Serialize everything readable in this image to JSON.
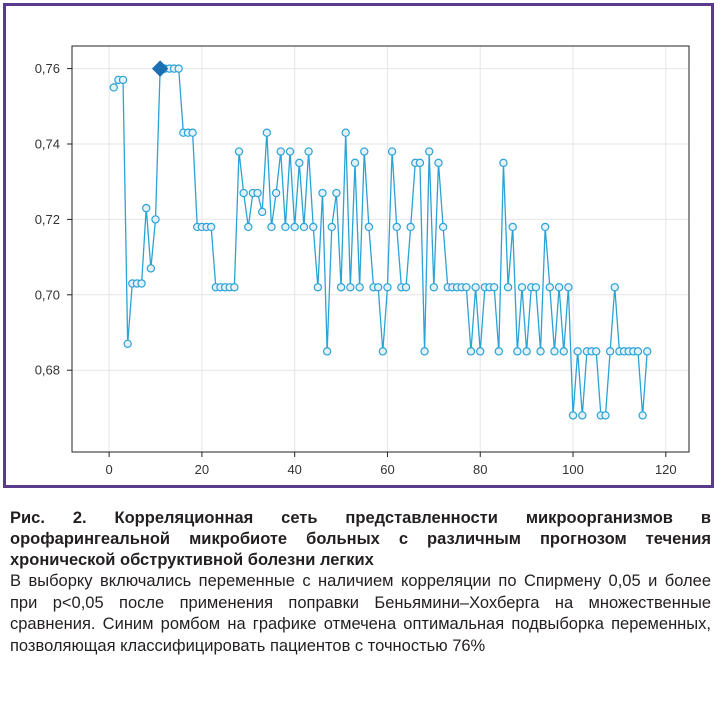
{
  "chart_data": {
    "type": "line",
    "xlim": [
      -8,
      125
    ],
    "ylim": [
      0.6583,
      0.766
    ],
    "x_ticks": [
      0,
      20,
      40,
      60,
      80,
      100,
      120
    ],
    "x_tick_labels": [
      "0",
      "20",
      "40",
      "60",
      "80",
      "100",
      "120"
    ],
    "y_ticks": [
      0.68,
      0.7,
      0.72,
      0.74,
      0.76
    ],
    "y_tick_labels": [
      "0,68",
      "0,70",
      "0,72",
      "0,74",
      "0,76"
    ],
    "grid": true,
    "colors": {
      "line": "#2ba3d6",
      "marker_fill": "#e3f1f8",
      "highlight": "#1b6fb3",
      "grid": "#e6e6e6"
    },
    "highlight": {
      "x": 11,
      "y": 0.76,
      "shape": "diamond"
    },
    "series": [
      {
        "x": [
          1,
          2,
          3,
          4,
          5,
          6,
          7,
          8,
          9,
          10,
          11,
          12,
          13,
          14,
          15,
          16,
          17,
          18,
          19,
          20,
          21,
          22,
          23,
          24,
          25,
          26,
          27,
          28,
          29,
          30,
          31,
          32,
          33,
          34,
          35,
          36,
          37,
          38,
          39,
          40,
          41,
          42,
          43,
          44,
          45,
          46,
          47,
          48,
          49,
          50,
          51,
          52,
          53,
          54,
          55,
          56,
          57,
          58,
          59,
          60,
          61,
          62,
          63,
          64,
          65,
          66,
          67,
          68,
          69,
          70,
          71,
          72,
          73,
          74,
          75,
          76,
          77,
          78,
          79,
          80,
          81,
          82,
          83,
          84,
          85,
          86,
          87,
          88,
          89,
          90,
          91,
          92,
          93,
          94,
          95,
          96,
          97,
          98,
          99,
          100,
          101,
          102,
          103,
          104,
          105,
          106,
          107,
          108,
          109,
          110,
          111,
          112,
          113,
          114,
          115,
          116
        ],
        "y": [
          0.755,
          0.757,
          0.757,
          0.687,
          0.703,
          0.703,
          0.703,
          0.723,
          0.707,
          0.72,
          0.76,
          0.76,
          0.76,
          0.76,
          0.76,
          0.743,
          0.743,
          0.743,
          0.718,
          0.718,
          0.718,
          0.718,
          0.702,
          0.702,
          0.702,
          0.702,
          0.702,
          0.738,
          0.727,
          0.718,
          0.727,
          0.727,
          0.722,
          0.743,
          0.718,
          0.727,
          0.738,
          0.718,
          0.738,
          0.718,
          0.735,
          0.718,
          0.738,
          0.718,
          0.702,
          0.727,
          0.685,
          0.718,
          0.727,
          0.702,
          0.743,
          0.702,
          0.735,
          0.702,
          0.738,
          0.718,
          0.702,
          0.702,
          0.685,
          0.702,
          0.738,
          0.718,
          0.702,
          0.702,
          0.718,
          0.735,
          0.735,
          0.685,
          0.738,
          0.702,
          0.735,
          0.718,
          0.702,
          0.702,
          0.702,
          0.702,
          0.702,
          0.685,
          0.702,
          0.685,
          0.702,
          0.702,
          0.702,
          0.685,
          0.735,
          0.702,
          0.718,
          0.685,
          0.702,
          0.685,
          0.702,
          0.702,
          0.685,
          0.718,
          0.702,
          0.685,
          0.702,
          0.685,
          0.702,
          0.668,
          0.685,
          0.668,
          0.685,
          0.685,
          0.685,
          0.668,
          0.668,
          0.685,
          0.702,
          0.685,
          0.685,
          0.685,
          0.685,
          0.685,
          0.668,
          0.685
        ]
      }
    ]
  },
  "caption": {
    "title": "Рис. 2. Корреляционная сеть представленности микроорганизмов в орофарингеальной микробиоте больных с различным прогнозом течения хронической обструктивной болезни легких",
    "text": "В выборку включались переменные с наличием корреляции по Спирмену 0,05 и более при p<0,05 после применения поправки Беньямини–Хохберга на множественные сравнения. Синим ромбом на графике отмечена оптимальная подвыборка переменных, позволяющая классифицировать пациентов с точностью 76%"
  }
}
